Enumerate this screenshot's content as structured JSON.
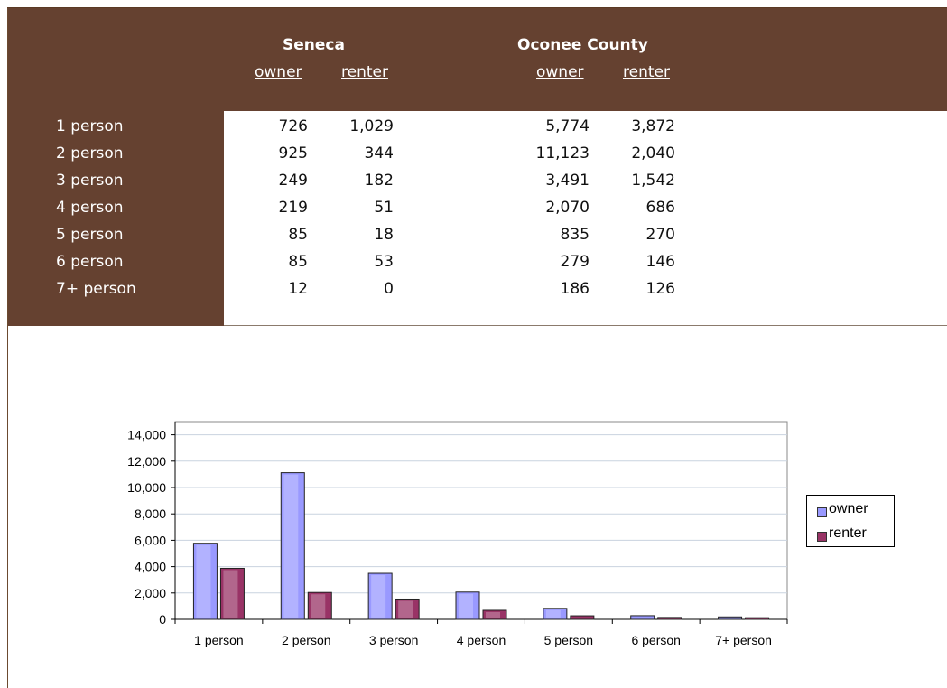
{
  "table": {
    "groups": [
      {
        "name": "Seneca",
        "cols": [
          "owner",
          "renter"
        ]
      },
      {
        "name": "Oconee County",
        "cols": [
          "owner",
          "renter"
        ]
      }
    ],
    "rows": [
      {
        "label": "1 person",
        "values": [
          "726",
          "1,029",
          "5,774",
          "3,872"
        ]
      },
      {
        "label": "2 person",
        "values": [
          "925",
          "344",
          "11,123",
          "2,040"
        ]
      },
      {
        "label": "3 person",
        "values": [
          "249",
          "182",
          "3,491",
          "1,542"
        ]
      },
      {
        "label": "4 person",
        "values": [
          "219",
          "51",
          "2,070",
          "686"
        ]
      },
      {
        "label": "5 person",
        "values": [
          "85",
          "18",
          "835",
          "270"
        ]
      },
      {
        "label": "6 person",
        "values": [
          "85",
          "53",
          "279",
          "146"
        ]
      },
      {
        "label": "7+ person",
        "values": [
          "12",
          "0",
          "186",
          "126"
        ]
      }
    ]
  },
  "chart_data": {
    "type": "bar",
    "categories": [
      "1 person",
      "2 person",
      "3 person",
      "4 person",
      "5 person",
      "6 person",
      "7+ person"
    ],
    "series": [
      {
        "name": "owner",
        "values": [
          5774,
          11123,
          3491,
          2070,
          835,
          279,
          186
        ]
      },
      {
        "name": "renter",
        "values": [
          3872,
          2040,
          1542,
          686,
          270,
          146,
          126
        ]
      }
    ],
    "yticks": [
      "0",
      "2,000",
      "4,000",
      "6,000",
      "8,000",
      "10,000",
      "12,000",
      "14,000"
    ],
    "ylim": [
      0,
      15000
    ],
    "grid": true,
    "legend": "right",
    "colors": {
      "owner": "#9999ff",
      "renter": "#993366"
    }
  }
}
